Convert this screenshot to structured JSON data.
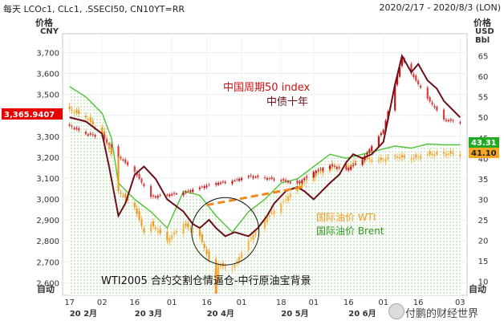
{
  "header": {
    "left": "每天 LCOc1, CLc1, .SSECI50, CN10YT=RR",
    "right": "2020/2/17 - 2020/8/3 (LON)"
  },
  "left_axis": {
    "title": "价格",
    "unit": "CNY",
    "auto": "自动",
    "current_label": "3,365.9407"
  },
  "right_axis": {
    "title": "价格",
    "unit": "USD",
    "unit2": "Bbl",
    "auto": "自动",
    "brent_last_label": "43.31",
    "wti_last_label": "41.10"
  },
  "watermark": "付鹏的财经世界",
  "annotations": {
    "china50": "中国周期50 index",
    "cn10y": "中债十年",
    "wti": "国际油价 WTI",
    "brent": "国际油价 Brent",
    "circle_note": "WTI2005 合约交割仓情逼仓-中行原油宝背景"
  },
  "colors": {
    "china50": "#cc1111",
    "cn10y": "#6b0f1a",
    "wti": "#f29a1f",
    "brent": "#4fc234",
    "brent_fill": "#cdeec0",
    "label_bg": "#e60000"
  },
  "chart_data": {
    "type": "line",
    "x_ticks": [
      {
        "date": "2020-02-17",
        "day": "17",
        "month": "20 2月"
      },
      {
        "date": "2020-03-02",
        "day": "02"
      },
      {
        "date": "2020-03-16",
        "day": "16",
        "month": "20 3月"
      },
      {
        "date": "2020-04-01",
        "day": "01"
      },
      {
        "date": "2020-04-16",
        "day": "16",
        "month": "20 4月"
      },
      {
        "date": "2020-05-01",
        "day": "01"
      },
      {
        "date": "2020-05-18",
        "day": "18",
        "month": "20 5月"
      },
      {
        "date": "2020-06-01",
        "day": "01"
      },
      {
        "date": "2020-06-16",
        "day": "16",
        "month": "20 6月"
      },
      {
        "date": "2020-07-01",
        "day": "01"
      },
      {
        "date": "2020-07-16",
        "day": "16"
      },
      {
        "date": "2020-08-03",
        "day": "03"
      }
    ],
    "left_ylim": [
      2540,
      3790
    ],
    "left_ticks": [
      "2,600",
      "2,700",
      "2,800",
      "2,900",
      "3,000",
      "3,100",
      "3,200",
      "3,300",
      "3,400",
      "3,500",
      "3,600",
      "3,700"
    ],
    "right_ylim": [
      6.6,
      70.4
    ],
    "right_ticks": [
      "10",
      "15",
      "20",
      "25",
      "30",
      "35",
      "40",
      "45",
      "50",
      "55",
      "60",
      "65"
    ],
    "series": [
      {
        "name": "中国周期50 index",
        "axis": "left",
        "style": "candlestick",
        "points": [
          [
            "2020-02-17",
            3350
          ],
          [
            "2020-02-24",
            3310
          ],
          [
            "2020-03-02",
            3300
          ],
          [
            "2020-03-09",
            3205
          ],
          [
            "2020-03-16",
            3130
          ],
          [
            "2020-03-23",
            3010
          ],
          [
            "2020-03-30",
            3020
          ],
          [
            "2020-04-06",
            3030
          ],
          [
            "2020-04-13",
            3055
          ],
          [
            "2020-04-20",
            3075
          ],
          [
            "2020-04-27",
            3085
          ],
          [
            "2020-05-04",
            3110
          ],
          [
            "2020-05-11",
            3100
          ],
          [
            "2020-05-18",
            3090
          ],
          [
            "2020-05-25",
            3075
          ],
          [
            "2020-06-01",
            3130
          ],
          [
            "2020-06-08",
            3160
          ],
          [
            "2020-06-15",
            3140
          ],
          [
            "2020-06-22",
            3190
          ],
          [
            "2020-07-01",
            3330
          ],
          [
            "2020-07-06",
            3550
          ],
          [
            "2020-07-09",
            3670
          ],
          [
            "2020-07-13",
            3600
          ],
          [
            "2020-07-20",
            3480
          ],
          [
            "2020-07-27",
            3380
          ],
          [
            "2020-08-03",
            3365.94
          ]
        ]
      },
      {
        "name": "中债十年",
        "axis": "right",
        "style": "line",
        "points": [
          [
            "2020-02-17",
            50
          ],
          [
            "2020-02-24",
            49
          ],
          [
            "2020-03-02",
            46
          ],
          [
            "2020-03-05",
            38
          ],
          [
            "2020-03-09",
            26
          ],
          [
            "2020-03-12",
            29
          ],
          [
            "2020-03-16",
            36
          ],
          [
            "2020-03-20",
            38
          ],
          [
            "2020-03-25",
            35
          ],
          [
            "2020-03-30",
            30
          ],
          [
            "2020-04-06",
            27
          ],
          [
            "2020-04-10",
            24
          ],
          [
            "2020-04-13",
            23
          ],
          [
            "2020-04-17",
            25
          ],
          [
            "2020-04-20",
            23
          ],
          [
            "2020-04-24",
            21
          ],
          [
            "2020-04-28",
            22
          ],
          [
            "2020-05-04",
            21
          ],
          [
            "2020-05-08",
            23
          ],
          [
            "2020-05-12",
            26
          ],
          [
            "2020-05-15",
            29
          ],
          [
            "2020-05-20",
            32
          ],
          [
            "2020-05-25",
            33
          ],
          [
            "2020-05-28",
            32
          ],
          [
            "2020-06-01",
            30
          ],
          [
            "2020-06-08",
            34
          ],
          [
            "2020-06-12",
            36
          ],
          [
            "2020-06-15",
            39
          ],
          [
            "2020-06-18",
            41
          ],
          [
            "2020-06-22",
            40
          ],
          [
            "2020-06-26",
            41
          ],
          [
            "2020-07-01",
            44
          ],
          [
            "2020-07-06",
            58
          ],
          [
            "2020-07-09",
            65
          ],
          [
            "2020-07-13",
            61
          ],
          [
            "2020-07-16",
            63
          ],
          [
            "2020-07-20",
            59
          ],
          [
            "2020-07-24",
            57
          ],
          [
            "2020-07-27",
            54
          ],
          [
            "2020-08-03",
            50
          ]
        ]
      },
      {
        "name": "国际油价 Brent",
        "axis": "right",
        "style": "area",
        "points": [
          [
            "2020-02-17",
            57.5
          ],
          [
            "2020-02-24",
            55
          ],
          [
            "2020-03-02",
            51
          ],
          [
            "2020-03-06",
            45
          ],
          [
            "2020-03-09",
            34
          ],
          [
            "2020-03-16",
            30
          ],
          [
            "2020-03-23",
            27
          ],
          [
            "2020-03-30",
            23
          ],
          [
            "2020-04-06",
            32
          ],
          [
            "2020-04-13",
            31
          ],
          [
            "2020-04-20",
            26
          ],
          [
            "2020-04-27",
            22
          ],
          [
            "2020-05-04",
            27
          ],
          [
            "2020-05-11",
            30
          ],
          [
            "2020-05-18",
            34
          ],
          [
            "2020-05-25",
            35
          ],
          [
            "2020-06-01",
            38
          ],
          [
            "2020-06-08",
            41
          ],
          [
            "2020-06-15",
            40
          ],
          [
            "2020-06-22",
            41
          ],
          [
            "2020-06-29",
            42
          ],
          [
            "2020-07-06",
            43
          ],
          [
            "2020-07-13",
            42.5
          ],
          [
            "2020-07-20",
            43.5
          ],
          [
            "2020-07-27",
            43.3
          ],
          [
            "2020-08-03",
            43.31
          ]
        ]
      },
      {
        "name": "国际油价 WTI",
        "axis": "right",
        "style": "candlestick",
        "points": [
          [
            "2020-02-17",
            52
          ],
          [
            "2020-02-24",
            50
          ],
          [
            "2020-03-02",
            46
          ],
          [
            "2020-03-06",
            41
          ],
          [
            "2020-03-09",
            32
          ],
          [
            "2020-03-16",
            28
          ],
          [
            "2020-03-20",
            22
          ],
          [
            "2020-03-23",
            24
          ],
          [
            "2020-03-30",
            20
          ],
          [
            "2020-04-06",
            24
          ],
          [
            "2020-04-13",
            21
          ],
          [
            "2020-04-20",
            11
          ],
          [
            "2020-04-21",
            14
          ],
          [
            "2020-04-27",
            13
          ],
          [
            "2020-05-04",
            20
          ],
          [
            "2020-05-11",
            25
          ],
          [
            "2020-05-18",
            29
          ],
          [
            "2020-05-25",
            33
          ],
          [
            "2020-06-01",
            36
          ],
          [
            "2020-06-08",
            38
          ],
          [
            "2020-06-15",
            38
          ],
          [
            "2020-06-22",
            40
          ],
          [
            "2020-06-29",
            39.5
          ],
          [
            "2020-07-06",
            40.5
          ],
          [
            "2020-07-13",
            40
          ],
          [
            "2020-07-20",
            41
          ],
          [
            "2020-07-27",
            41.2
          ],
          [
            "2020-08-03",
            41.1
          ]
        ]
      }
    ],
    "annotation_trendline": [
      [
        "2020-04-16",
        28.6
      ],
      [
        "2020-05-29",
        33.2
      ]
    ],
    "annotation_circle": {
      "center": [
        "2020-04-24",
        22.2
      ]
    }
  }
}
